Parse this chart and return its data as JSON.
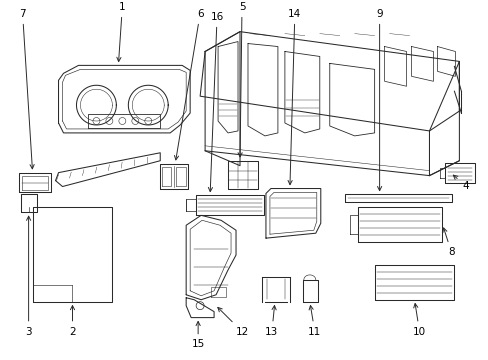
{
  "background_color": "#ffffff",
  "line_color": "#2a2a2a",
  "text_color": "#000000",
  "figsize": [
    4.89,
    3.6
  ],
  "dpi": 100,
  "label_fontsize": 7.5,
  "lw": 0.75
}
